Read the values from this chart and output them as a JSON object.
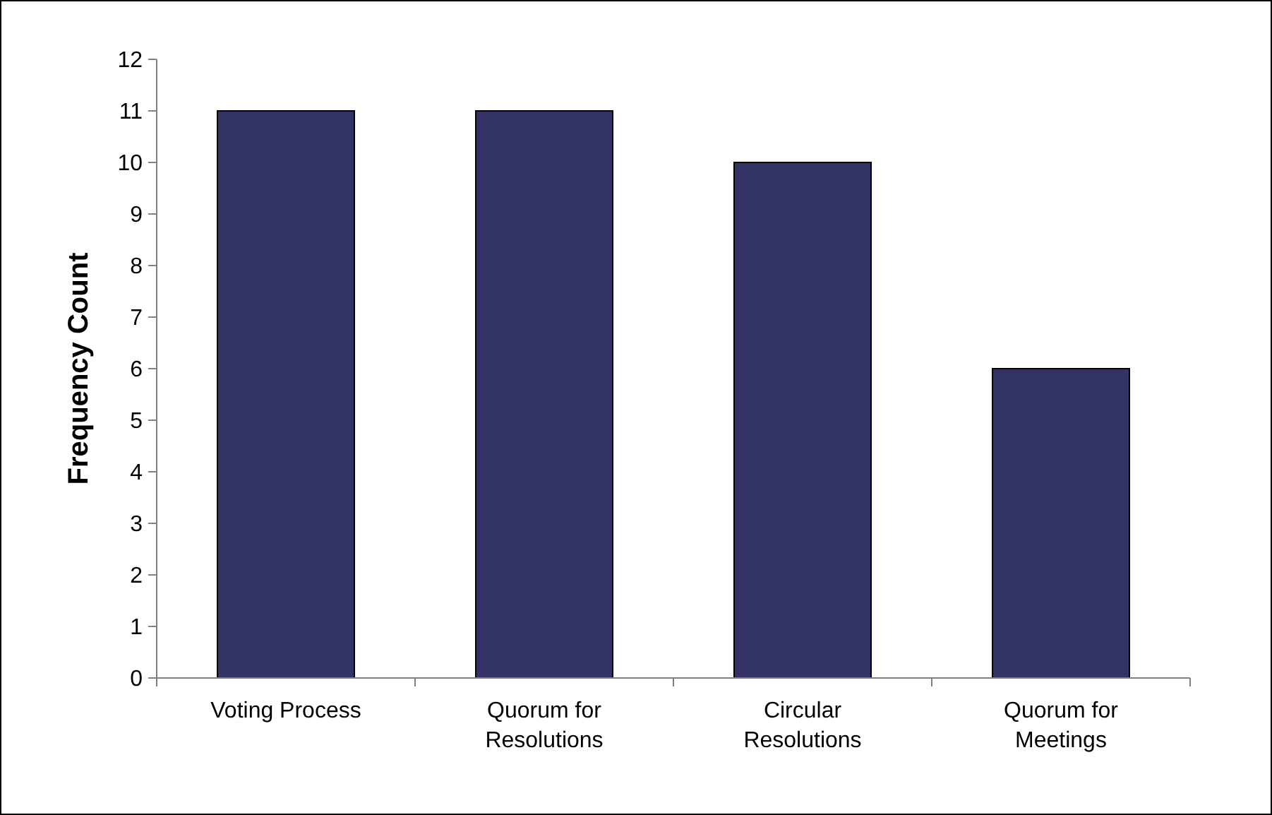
{
  "chart_data": {
    "type": "bar",
    "ylabel": "Frequency Count",
    "categories": [
      "Voting Process",
      "Quorum for Resolutions",
      "Circular Resolutions",
      "Quorum for Meetings"
    ],
    "values": [
      11,
      11,
      10,
      6
    ],
    "color": "#333366",
    "ylim": [
      0,
      12
    ],
    "yticks": [
      0,
      1,
      2,
      3,
      4,
      5,
      6,
      7,
      8,
      9,
      10,
      11,
      12
    ],
    "grid": false
  }
}
